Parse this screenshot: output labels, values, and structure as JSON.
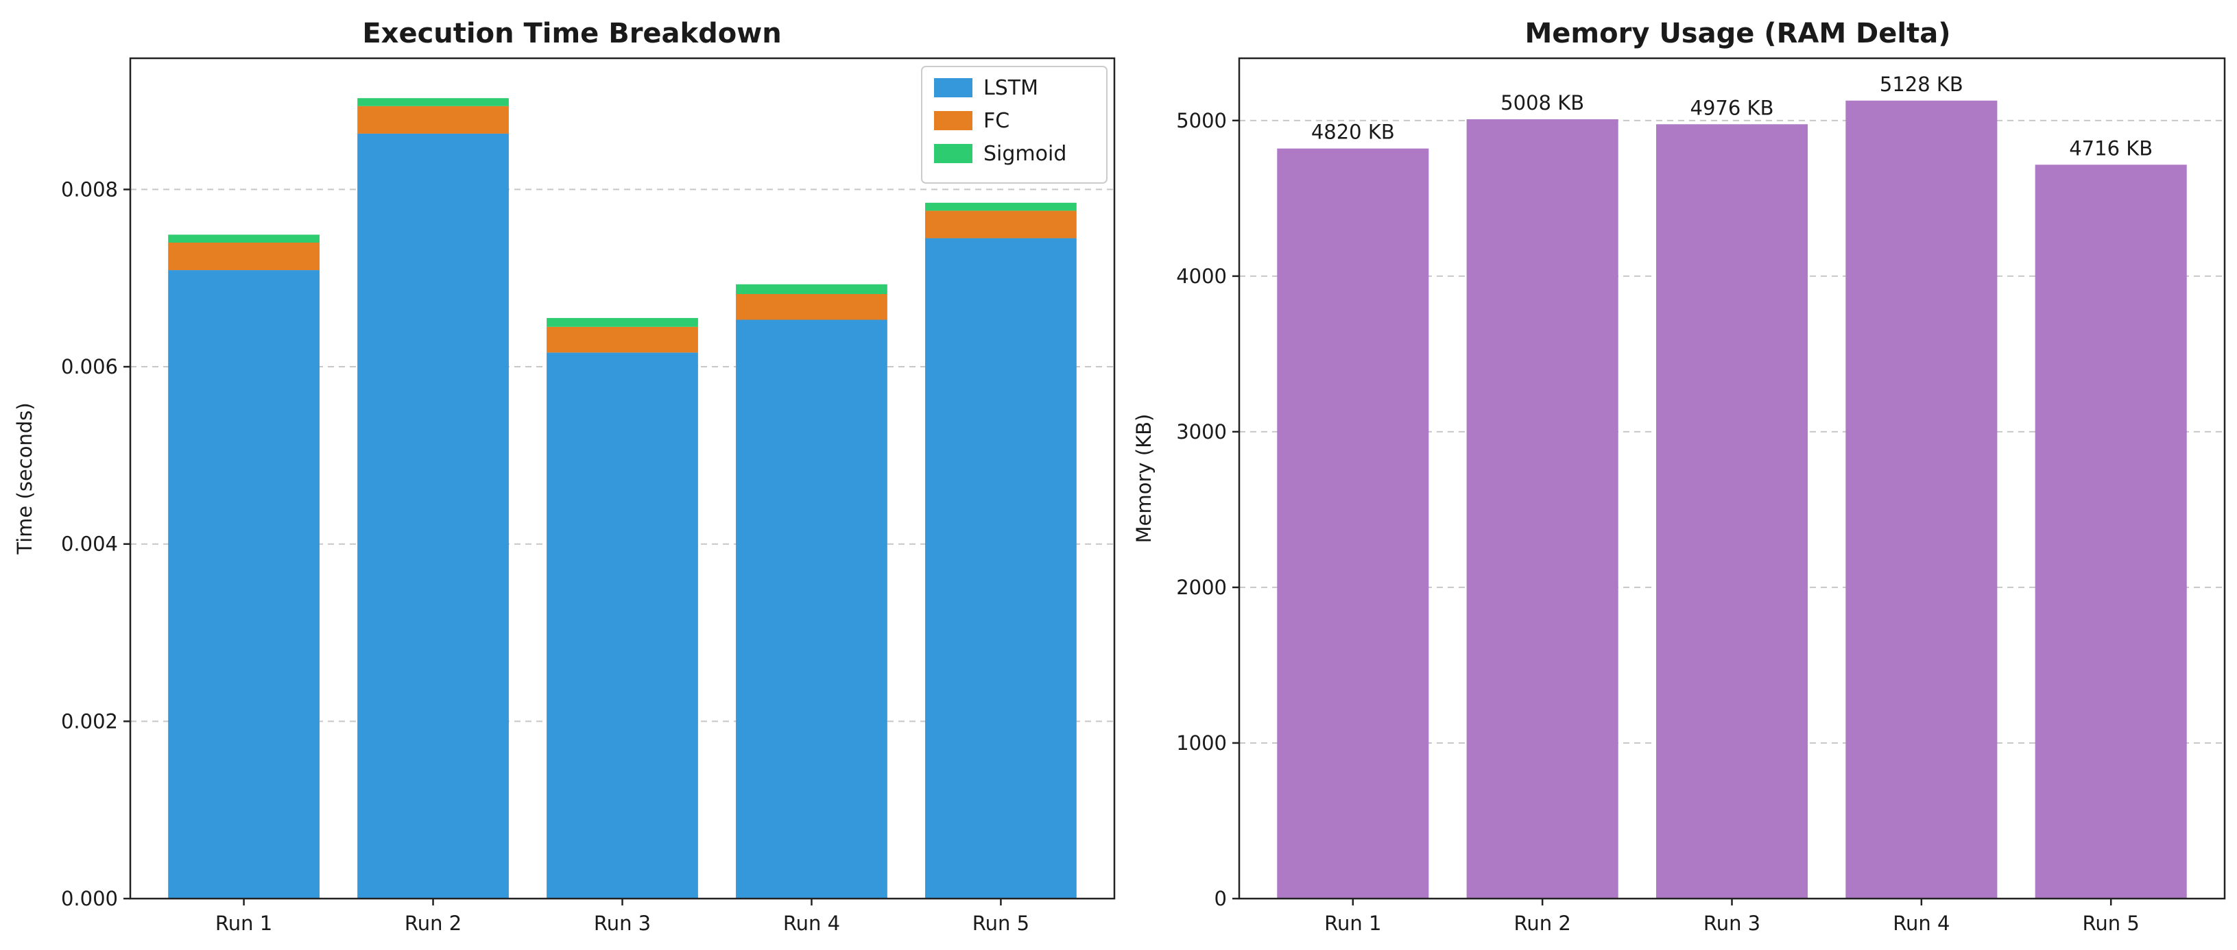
{
  "chart_data": [
    {
      "type": "bar",
      "stacked": true,
      "title": "Execution Time Breakdown",
      "xlabel": "",
      "ylabel": "Time (seconds)",
      "categories": [
        "Run 1",
        "Run 2",
        "Run 3",
        "Run 4",
        "Run 5"
      ],
      "series": [
        {
          "name": "LSTM",
          "color": "#3498db",
          "values": [
            0.00709,
            0.00863,
            0.00616,
            0.00653,
            0.00745
          ]
        },
        {
          "name": "FC",
          "color": "#e67e22",
          "values": [
            0.00031,
            0.00031,
            0.00029,
            0.00029,
            0.00031
          ]
        },
        {
          "name": "Sigmoid",
          "color": "#2ecc71",
          "values": [
            9e-05,
            9e-05,
            0.0001,
            0.00011,
            9e-05
          ]
        }
      ],
      "ylim": [
        0,
        0.00948
      ],
      "yticks": [
        "0.000",
        "0.002",
        "0.004",
        "0.006",
        "0.008"
      ],
      "legend": "top-right",
      "grid": "y-dashed"
    },
    {
      "type": "bar",
      "title": "Memory Usage (RAM Delta)",
      "xlabel": "",
      "ylabel": "Memory (KB)",
      "categories": [
        "Run 1",
        "Run 2",
        "Run 3",
        "Run 4",
        "Run 5"
      ],
      "values": [
        4820,
        5008,
        4976,
        5128,
        4716
      ],
      "data_labels": [
        "4820 KB",
        "5008 KB",
        "4976 KB",
        "5128 KB",
        "4716 KB"
      ],
      "color": "#af7ac5",
      "ylim": [
        0,
        5400
      ],
      "yticks": [
        "0",
        "1000",
        "2000",
        "3000",
        "4000",
        "5000"
      ],
      "grid": "y-dashed"
    }
  ]
}
